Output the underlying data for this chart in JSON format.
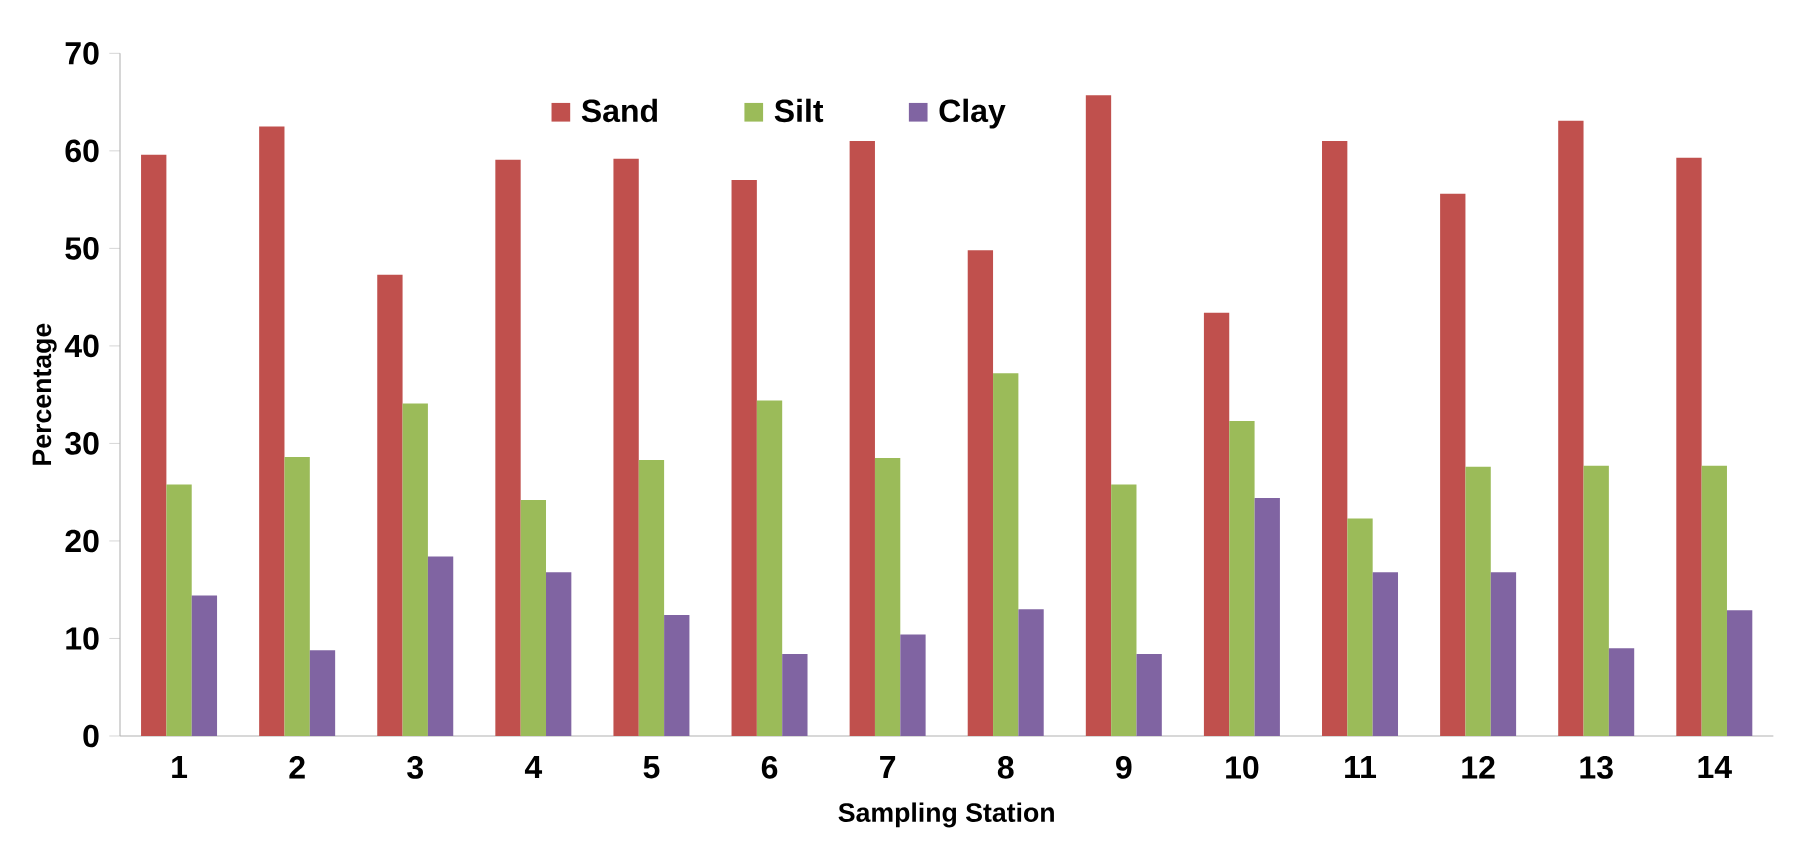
{
  "chart_data": {
    "type": "bar",
    "xlabel": "Sampling Station",
    "ylabel": "Percentage",
    "categories": [
      "1",
      "2",
      "3",
      "4",
      "5",
      "6",
      "7",
      "8",
      "9",
      "10",
      "11",
      "12",
      "13",
      "14"
    ],
    "series": [
      {
        "name": "Sand",
        "color": "#c0504d",
        "values": [
          59.6,
          62.5,
          47.3,
          59.1,
          59.2,
          57,
          61,
          49.8,
          65.7,
          43.4,
          61,
          55.6,
          63.1,
          59.3
        ]
      },
      {
        "name": "Silt",
        "color": "#9bbb59",
        "values": [
          25.8,
          28.6,
          34.1,
          24.2,
          28.3,
          34.4,
          28.5,
          37.2,
          25.8,
          32.3,
          22.3,
          27.6,
          27.7,
          27.7
        ]
      },
      {
        "name": "Clay",
        "color": "#8064a2",
        "values": [
          14.4,
          8.8,
          18.4,
          16.8,
          12.4,
          8.4,
          10.4,
          13,
          8.4,
          24.4,
          16.8,
          16.8,
          9,
          12.9
        ]
      }
    ],
    "ylim": [
      0,
      70
    ],
    "yticks": [
      0,
      10,
      20,
      30,
      40,
      50,
      60,
      70
    ],
    "grid": false,
    "legend": "top"
  }
}
